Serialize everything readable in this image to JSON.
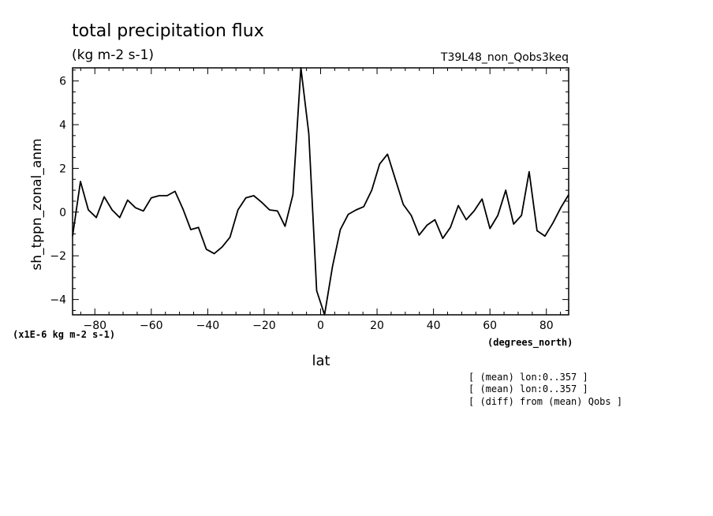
{
  "chart_data": {
    "type": "line",
    "title": "total precipitation flux",
    "subtitle": "(kg m-2 s-1)",
    "experiment": "T39L48_non_Qobs3keq",
    "xlabel": "lat",
    "ylabel": "sh_tppn_zonal_anm",
    "x_units": "(degrees_north)",
    "y_scale_note": "(x1E-6 kg m-2 s-1)",
    "xlim": [
      -87.9,
      87.9
    ],
    "ylim": [
      -4.7,
      6.6
    ],
    "xticks": [
      -80,
      -60,
      -40,
      -20,
      0,
      20,
      40,
      60,
      80
    ],
    "yticks": [
      -4,
      -2,
      0,
      2,
      4,
      6
    ],
    "grid": false,
    "notes": [
      "[ (mean) lon:0..357 ]",
      "[ (mean) lon:0..357 ]",
      "[ (diff) from (mean) Qobs ]"
    ],
    "series": [
      {
        "x": [
          -87.9,
          -85.1,
          -82.3,
          -79.5,
          -76.7,
          -73.9,
          -71.2,
          -68.4,
          -65.6,
          -62.8,
          -60.0,
          -57.2,
          -54.4,
          -51.6,
          -48.8,
          -46.0,
          -43.3,
          -40.5,
          -37.7,
          -34.9,
          -32.1,
          -29.3,
          -26.5,
          -23.7,
          -20.9,
          -18.1,
          -15.3,
          -12.6,
          -9.8,
          -7.0,
          -4.2,
          -1.4,
          1.4,
          4.2,
          7.0,
          9.8,
          12.6,
          15.3,
          18.1,
          20.9,
          23.7,
          26.5,
          29.3,
          32.1,
          34.9,
          37.7,
          40.5,
          43.3,
          46.0,
          48.8,
          51.6,
          54.4,
          57.2,
          60.0,
          62.8,
          65.6,
          68.4,
          71.2,
          73.9,
          76.7,
          79.5,
          82.3,
          85.1,
          87.9
        ],
        "values": [
          -1.1,
          1.4,
          0.1,
          -0.25,
          0.7,
          0.1,
          -0.25,
          0.55,
          0.2,
          0.05,
          0.65,
          0.75,
          0.75,
          0.95,
          0.15,
          -0.8,
          -0.7,
          -1.7,
          -1.9,
          -1.6,
          -1.15,
          0.1,
          0.65,
          0.75,
          0.45,
          0.1,
          0.05,
          -0.65,
          0.8,
          6.6,
          3.6,
          -3.6,
          -4.7,
          -2.5,
          -0.8,
          -0.1,
          0.1,
          0.25,
          1.0,
          2.2,
          2.65,
          1.5,
          0.35,
          -0.15,
          -1.05,
          -0.6,
          -0.35,
          -1.2,
          -0.7,
          0.3,
          -0.35,
          0.05,
          0.6,
          -0.75,
          -0.15,
          1.0,
          -0.55,
          -0.15,
          1.85,
          -0.85,
          -1.1,
          -0.5,
          0.2,
          0.8
        ]
      }
    ]
  }
}
